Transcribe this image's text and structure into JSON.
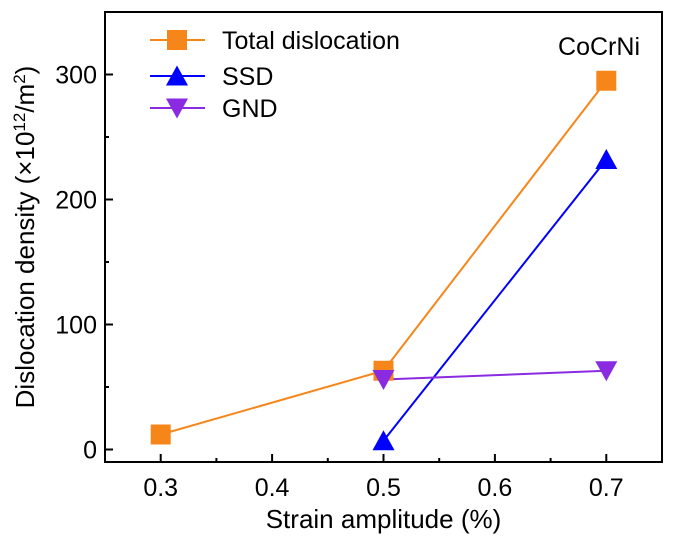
{
  "chart_data": {
    "type": "line",
    "annotation": "CoCrNi",
    "xlabel": "Strain amplitude (%)",
    "ylabel": {
      "prefix": "Dislocation density (×10",
      "exp1": "12",
      "mid": "/m",
      "exp2": "2",
      "suffix": ")"
    },
    "xlim": [
      0.25,
      0.75
    ],
    "ylim": [
      -10,
      350
    ],
    "xticks": [
      0.3,
      0.4,
      0.5,
      0.6,
      0.7
    ],
    "xtick_labels": [
      "0.3",
      "0.4",
      "0.5",
      "0.6",
      "0.7"
    ],
    "yticks": [
      0,
      100,
      200,
      300
    ],
    "ytick_labels": [
      "0",
      "100",
      "200",
      "300"
    ],
    "grid": false,
    "legend_position": "top-left",
    "series": [
      {
        "name": "Total dislocation",
        "color": "#F7861A",
        "marker": "square",
        "x": [
          0.3,
          0.5,
          0.7
        ],
        "y": [
          12,
          63,
          295
        ]
      },
      {
        "name": "SSD",
        "color": "#0000FF",
        "marker": "triangle-up",
        "x": [
          0.5,
          0.7
        ],
        "y": [
          7,
          232
        ]
      },
      {
        "name": "GND",
        "color": "#8A2BE2",
        "marker": "triangle-down",
        "x": [
          0.5,
          0.7
        ],
        "y": [
          56,
          63
        ]
      }
    ]
  }
}
